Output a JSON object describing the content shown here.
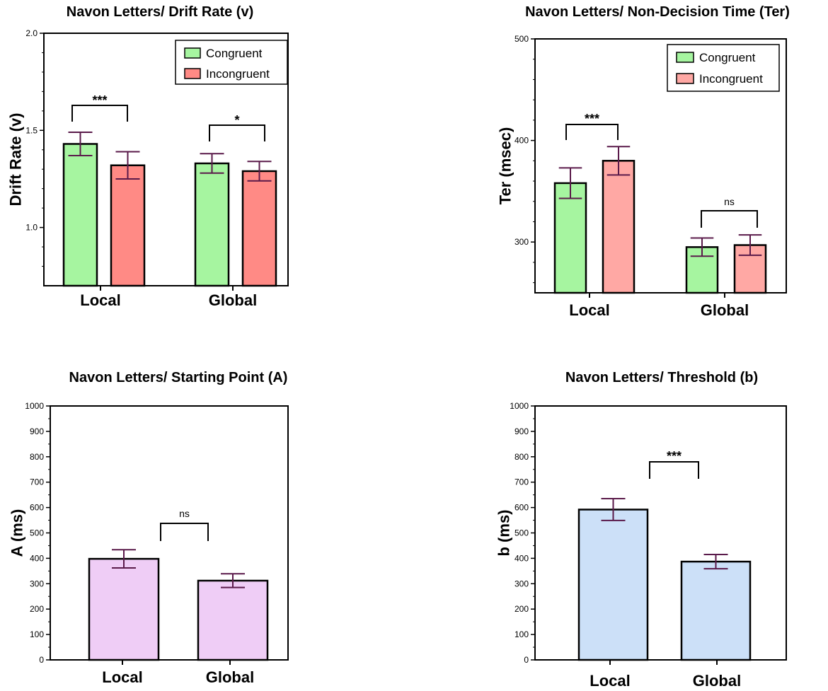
{
  "chart_data": [
    {
      "type": "bar",
      "title": "Navon Letters/ Drift Rate (v)",
      "ylabel": "Drift Rate  (v)",
      "xlabel": "",
      "ylim": [
        0.7,
        2.0
      ],
      "yticks": [
        1.0,
        1.5,
        2.0
      ],
      "ytick_labels": [
        "1.0",
        "1.5",
        "2.0"
      ],
      "categories": [
        "Local",
        "Global"
      ],
      "legend_position": "top-right",
      "series": [
        {
          "name": "Congruent",
          "color": "#a6f5a0",
          "values": [
            1.43,
            1.33
          ],
          "errors": [
            0.06,
            0.05
          ]
        },
        {
          "name": "Incongruent",
          "color": "#ff8a85",
          "values": [
            1.32,
            1.29
          ],
          "errors": [
            0.07,
            0.05
          ]
        }
      ],
      "annotations": [
        {
          "category_index": 0,
          "text": "***"
        },
        {
          "category_index": 1,
          "text": "*"
        }
      ]
    },
    {
      "type": "bar",
      "title": "Navon Letters/ Non-Decision Time  (Ter)",
      "ylabel": "Ter  (msec)",
      "xlabel": "",
      "ylim": [
        250,
        500
      ],
      "yticks": [
        300,
        400,
        500
      ],
      "ytick_labels": [
        "300",
        "400",
        "500"
      ],
      "categories": [
        "Local",
        "Global"
      ],
      "legend_position": "top-right",
      "series": [
        {
          "name": "Congruent",
          "color": "#a6f5a0",
          "values": [
            358,
            295
          ],
          "errors": [
            15,
            9
          ]
        },
        {
          "name": "Incongruent",
          "color": "#ffa8a4",
          "values": [
            380,
            297
          ],
          "errors": [
            14,
            10
          ]
        }
      ],
      "annotations": [
        {
          "category_index": 0,
          "text": "***"
        },
        {
          "category_index": 1,
          "text": "ns"
        }
      ]
    },
    {
      "type": "bar",
      "title": "Navon Letters/ Starting Point (A)",
      "ylabel": "A (ms)",
      "xlabel": "",
      "ylim": [
        0,
        1000
      ],
      "yticks": [
        0,
        100,
        200,
        300,
        400,
        500,
        600,
        700,
        800,
        900,
        1000
      ],
      "ytick_labels": [
        "0",
        "100",
        "200",
        "300",
        "400",
        "500",
        "600",
        "700",
        "800",
        "900",
        "1000"
      ],
      "categories": [
        "Local",
        "Global"
      ],
      "series": [
        {
          "name": "A",
          "color": "#efcdf6",
          "values": [
            398,
            312
          ],
          "errors": [
            36,
            27
          ]
        }
      ],
      "annotations": [
        {
          "between": [
            0,
            1
          ],
          "text": "ns"
        }
      ]
    },
    {
      "type": "bar",
      "title": "Navon Letters/ Threshold  (b)",
      "ylabel": "b (ms)",
      "xlabel": "",
      "ylim": [
        0,
        1000
      ],
      "yticks": [
        0,
        100,
        200,
        300,
        400,
        500,
        600,
        700,
        800,
        900,
        1000
      ],
      "ytick_labels": [
        "0",
        "100",
        "200",
        "300",
        "400",
        "500",
        "600",
        "700",
        "800",
        "900",
        "1000"
      ],
      "categories": [
        "Local",
        "Global"
      ],
      "series": [
        {
          "name": "b",
          "color": "#cce0f8",
          "values": [
            592,
            387
          ],
          "errors": [
            43,
            28
          ]
        }
      ],
      "annotations": [
        {
          "between": [
            0,
            1
          ],
          "text": "***"
        }
      ]
    }
  ],
  "colors": {
    "error_bar": "#5a1a4a",
    "axis": "#000000",
    "bar_border": "#000000"
  }
}
